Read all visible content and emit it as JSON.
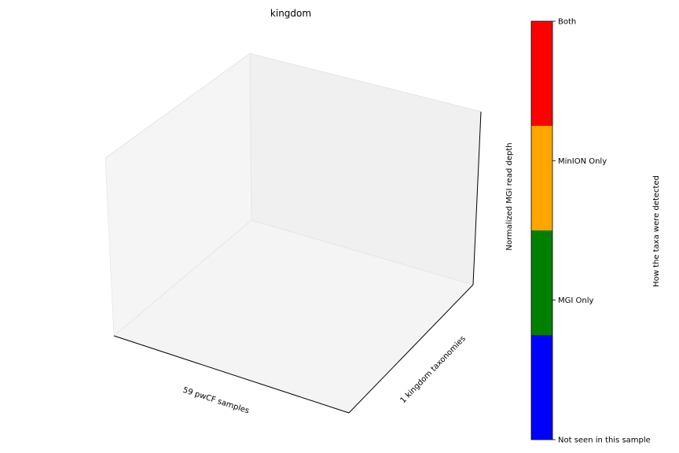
{
  "chart_data": {
    "type": "bar",
    "projection": "3d",
    "title": "kingdom",
    "xlabel": "59 pwCF samples",
    "ylabel": "1 kingdom taxonomies",
    "zlabel": "Normalized MGI read depth",
    "series": [],
    "grid": false,
    "colorbar": {
      "label": "How the taxa were detected",
      "categories": [
        {
          "label": "Not seen in this sample",
          "color": "#0000ff"
        },
        {
          "label": "MGI Only",
          "color": "#008000"
        },
        {
          "label": "MinION Only",
          "color": "#ffa500"
        },
        {
          "label": "Both",
          "color": "#ff0000"
        }
      ]
    }
  },
  "colors": {
    "pane_left": "#f5f5f5",
    "pane_back": "#f0f0f0",
    "pane_floor": "#f4f4f4",
    "pane_edge": "#e6e6e6",
    "axis_line": "#000000"
  }
}
